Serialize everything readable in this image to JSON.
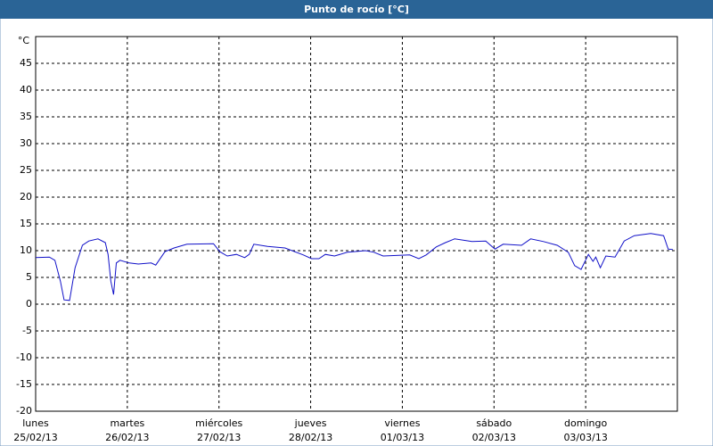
{
  "chart_data": {
    "type": "line",
    "title": "Punto de rocío [°C]",
    "y_unit": "°C",
    "x": [
      0,
      0.15,
      0.21,
      0.27,
      0.31,
      0.37,
      0.39,
      0.43,
      0.51,
      0.58,
      0.68,
      0.76,
      0.79,
      0.82,
      0.85,
      0.88,
      0.92,
      1.02,
      1.12,
      1.26,
      1.31,
      1.41,
      1.51,
      1.65,
      1.94,
      2.01,
      2.09,
      2.19,
      2.28,
      2.33,
      2.38,
      2.53,
      2.72,
      2.92,
      3.01,
      3.09,
      3.16,
      3.26,
      3.4,
      3.6,
      3.69,
      3.79,
      4.08,
      4.18,
      4.26,
      4.37,
      4.47,
      4.57,
      4.76,
      4.91,
      5.01,
      5.1,
      5.3,
      5.4,
      5.54,
      5.69,
      5.81,
      5.88,
      5.95,
      6.03,
      6.08,
      6.11,
      6.16,
      6.22,
      6.32,
      6.42,
      6.53,
      6.71,
      6.85,
      6.9,
      6.95
    ],
    "series": [
      {
        "name": "Punto de rocío",
        "color": "#1010c8",
        "values": [
          8.7,
          8.8,
          8.2,
          4.3,
          0.8,
          0.7,
          2.7,
          6.8,
          11,
          11.8,
          12.2,
          11.5,
          9.3,
          4.3,
          1.8,
          7.7,
          8.2,
          7.7,
          7.5,
          7.7,
          7.3,
          9.8,
          10.5,
          11.2,
          11.3,
          9.8,
          9,
          9.3,
          8.7,
          9.3,
          11.2,
          10.8,
          10.5,
          9.2,
          8.5,
          8.5,
          9.3,
          9,
          9.7,
          10,
          9.7,
          9,
          9.2,
          8.5,
          9.2,
          10.7,
          11.5,
          12.2,
          11.7,
          11.8,
          10.3,
          11.2,
          11,
          12.2,
          11.7,
          11,
          9.7,
          7.2,
          6.5,
          9.3,
          8,
          8.8,
          6.8,
          9,
          8.8,
          11.8,
          12.8,
          13.2,
          12.8,
          10.3,
          10.2
        ]
      }
    ],
    "xlim": [
      0,
      7
    ],
    "xticks": [
      {
        "value": 0,
        "label": [
          "lunes",
          "25/02/13"
        ]
      },
      {
        "value": 1,
        "label": [
          "martes",
          "26/02/13"
        ]
      },
      {
        "value": 2,
        "label": [
          "miércoles",
          "27/02/13"
        ]
      },
      {
        "value": 3,
        "label": [
          "jueves",
          "28/02/13"
        ]
      },
      {
        "value": 4,
        "label": [
          "viernes",
          "01/03/13"
        ]
      },
      {
        "value": 5,
        "label": [
          "sábado",
          "02/03/13"
        ]
      },
      {
        "value": 6,
        "label": [
          "domingo",
          "03/03/13"
        ]
      }
    ],
    "ylim": [
      -20,
      50
    ],
    "yticks": [
      -20,
      -15,
      -10,
      -5,
      0,
      5,
      10,
      15,
      20,
      25,
      30,
      35,
      40,
      45
    ],
    "grid": true
  }
}
